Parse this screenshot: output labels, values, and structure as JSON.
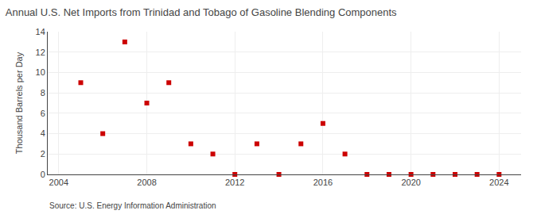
{
  "chart_data": {
    "type": "scatter",
    "title": "Annual U.S. Net Imports from Trinidad and Tobago of Gasoline Blending Components",
    "ylabel": "Thousand Barrels per Day",
    "source": "Source: U.S. Energy Information Administration",
    "x": [
      2005,
      2006,
      2007,
      2008,
      2009,
      2010,
      2011,
      2012,
      2013,
      2014,
      2015,
      2016,
      2017,
      2018,
      2019,
      2020,
      2021,
      2022,
      2023,
      2024
    ],
    "values": [
      9,
      4,
      13,
      7,
      9,
      3,
      2,
      0,
      3,
      0,
      3,
      5,
      2,
      0,
      0,
      0,
      0,
      0,
      0,
      0
    ],
    "color": "#cc0000",
    "marker": "square",
    "xlim": [
      2003.5,
      2025
    ],
    "ylim": [
      0,
      14
    ],
    "xticks": [
      2004,
      2008,
      2012,
      2016,
      2020,
      2024
    ],
    "yticks": [
      0,
      2,
      4,
      6,
      8,
      10,
      12,
      14
    ],
    "grid": true
  }
}
